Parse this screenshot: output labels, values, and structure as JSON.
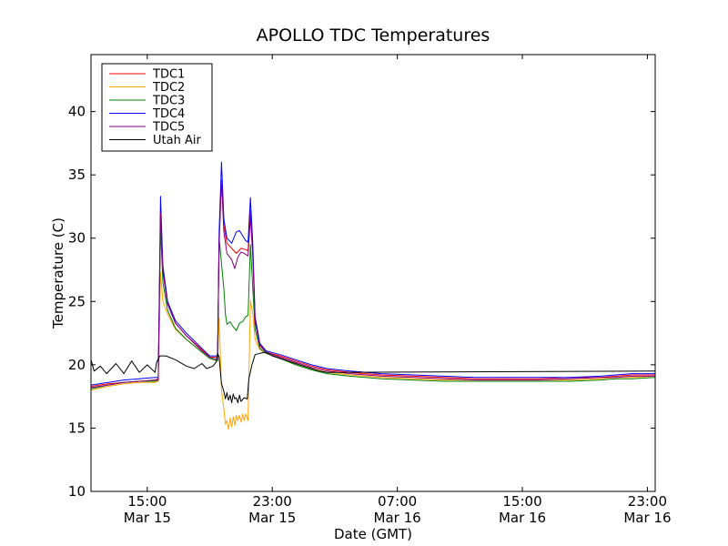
{
  "chart_data": {
    "type": "line",
    "title": "APOLLO TDC Temperatures",
    "xlabel": "Date (GMT)",
    "ylabel": "Temperature (C)",
    "xunit": "hours since Mar 15 00:00 GMT",
    "xlim": [
      11.4,
      47.5
    ],
    "ylim": [
      10,
      44.5
    ],
    "grid": false,
    "legend_position": "top-left",
    "yticks": [
      {
        "value": 10,
        "label": "10"
      },
      {
        "value": 15,
        "label": "15"
      },
      {
        "value": 20,
        "label": "20"
      },
      {
        "value": 25,
        "label": "25"
      },
      {
        "value": 30,
        "label": "30"
      },
      {
        "value": 35,
        "label": "35"
      },
      {
        "value": 40,
        "label": "40"
      }
    ],
    "xticks": [
      {
        "value": 15,
        "time": "15:00",
        "date": "Mar 15"
      },
      {
        "value": 23,
        "time": "23:00",
        "date": "Mar 15"
      },
      {
        "value": 31,
        "time": "07:00",
        "date": "Mar 16"
      },
      {
        "value": 39,
        "time": "15:00",
        "date": "Mar 16"
      },
      {
        "value": 47,
        "time": "23:00",
        "date": "Mar 16"
      }
    ],
    "series": [
      {
        "name": "TDC1",
        "color": "#ff0000",
        "points": [
          [
            11.4,
            18.3
          ],
          [
            12.5,
            18.5
          ],
          [
            13.5,
            18.6
          ],
          [
            14.5,
            18.7
          ],
          [
            15.5,
            18.8
          ],
          [
            15.7,
            18.9
          ],
          [
            15.85,
            31.5
          ],
          [
            16.0,
            27.5
          ],
          [
            16.3,
            24.8
          ],
          [
            16.8,
            23.3
          ],
          [
            17.5,
            22.3
          ],
          [
            18.5,
            21.2
          ],
          [
            19.0,
            20.6
          ],
          [
            19.5,
            20.6
          ],
          [
            19.6,
            30.0
          ],
          [
            19.75,
            34.6
          ],
          [
            19.9,
            31.0
          ],
          [
            20.1,
            29.6
          ],
          [
            20.4,
            29.2
          ],
          [
            20.7,
            28.8
          ],
          [
            21.0,
            29.2
          ],
          [
            21.3,
            29.1
          ],
          [
            21.45,
            29.0
          ],
          [
            21.6,
            32.2
          ],
          [
            21.75,
            29.0
          ],
          [
            21.9,
            23.5
          ],
          [
            22.2,
            21.6
          ],
          [
            22.6,
            21.0
          ],
          [
            23.5,
            20.7
          ],
          [
            24.5,
            20.3
          ],
          [
            25.5,
            19.9
          ],
          [
            26.5,
            19.6
          ],
          [
            28,
            19.4
          ],
          [
            30,
            19.2
          ],
          [
            32,
            19.1
          ],
          [
            34,
            19.0
          ],
          [
            36,
            18.9
          ],
          [
            38,
            18.9
          ],
          [
            40,
            18.9
          ],
          [
            42,
            19.0
          ],
          [
            44,
            19.0
          ],
          [
            45,
            19.1
          ],
          [
            46,
            19.2
          ],
          [
            47.5,
            19.2
          ]
        ]
      },
      {
        "name": "TDC2",
        "color": "#ffa500",
        "points": [
          [
            11.4,
            18.0
          ],
          [
            12.5,
            18.3
          ],
          [
            13.5,
            18.5
          ],
          [
            14.5,
            18.6
          ],
          [
            15.5,
            18.6
          ],
          [
            15.7,
            18.7
          ],
          [
            15.85,
            27.3
          ],
          [
            16.0,
            25.0
          ],
          [
            16.3,
            24.0
          ],
          [
            16.8,
            22.8
          ],
          [
            17.5,
            22.0
          ],
          [
            18.5,
            21.0
          ],
          [
            19.0,
            20.5
          ],
          [
            19.5,
            20.3
          ],
          [
            19.6,
            23.7
          ],
          [
            19.75,
            18.0
          ],
          [
            19.9,
            16.5
          ],
          [
            20.0,
            15.3
          ],
          [
            20.1,
            15.6
          ],
          [
            20.2,
            14.9
          ],
          [
            20.3,
            15.8
          ],
          [
            20.4,
            15.1
          ],
          [
            20.5,
            15.9
          ],
          [
            20.6,
            15.2
          ],
          [
            20.7,
            16.0
          ],
          [
            20.8,
            15.6
          ],
          [
            20.9,
            16.0
          ],
          [
            21.0,
            15.5
          ],
          [
            21.1,
            16.1
          ],
          [
            21.2,
            15.6
          ],
          [
            21.3,
            16.1
          ],
          [
            21.45,
            15.6
          ],
          [
            21.6,
            25.1
          ],
          [
            21.75,
            24.0
          ],
          [
            21.9,
            22.0
          ],
          [
            22.2,
            21.2
          ],
          [
            22.6,
            20.9
          ],
          [
            23.5,
            20.5
          ],
          [
            24.5,
            20.1
          ],
          [
            25.5,
            19.7
          ],
          [
            26.5,
            19.4
          ],
          [
            28,
            19.2
          ],
          [
            30,
            19.0
          ],
          [
            32,
            18.9
          ],
          [
            34,
            18.8
          ],
          [
            36,
            18.8
          ],
          [
            38,
            18.8
          ],
          [
            40,
            18.8
          ],
          [
            42,
            18.8
          ],
          [
            44,
            18.9
          ],
          [
            45,
            19.0
          ],
          [
            46,
            19.0
          ],
          [
            47.5,
            19.1
          ]
        ]
      },
      {
        "name": "TDC3",
        "color": "#008000",
        "points": [
          [
            11.4,
            18.1
          ],
          [
            12.5,
            18.4
          ],
          [
            13.5,
            18.6
          ],
          [
            14.5,
            18.7
          ],
          [
            15.5,
            18.7
          ],
          [
            15.7,
            18.8
          ],
          [
            15.85,
            30.8
          ],
          [
            16.0,
            26.5
          ],
          [
            16.3,
            24.3
          ],
          [
            16.8,
            22.9
          ],
          [
            17.5,
            22.0
          ],
          [
            18.5,
            21.0
          ],
          [
            19.0,
            20.5
          ],
          [
            19.5,
            20.3
          ],
          [
            19.6,
            30.0
          ],
          [
            19.75,
            28.0
          ],
          [
            19.9,
            26.0
          ],
          [
            20.0,
            24.0
          ],
          [
            20.1,
            23.2
          ],
          [
            20.3,
            23.4
          ],
          [
            20.5,
            23.0
          ],
          [
            20.7,
            22.7
          ],
          [
            20.9,
            23.3
          ],
          [
            21.1,
            23.4
          ],
          [
            21.3,
            23.8
          ],
          [
            21.45,
            23.9
          ],
          [
            21.6,
            29.5
          ],
          [
            21.75,
            26.0
          ],
          [
            21.9,
            22.8
          ],
          [
            22.2,
            21.3
          ],
          [
            22.6,
            20.9
          ],
          [
            23.5,
            20.5
          ],
          [
            24.5,
            20.0
          ],
          [
            25.5,
            19.6
          ],
          [
            26.5,
            19.3
          ],
          [
            28,
            19.1
          ],
          [
            30,
            18.9
          ],
          [
            32,
            18.8
          ],
          [
            34,
            18.7
          ],
          [
            36,
            18.7
          ],
          [
            38,
            18.7
          ],
          [
            40,
            18.7
          ],
          [
            42,
            18.7
          ],
          [
            44,
            18.8
          ],
          [
            45,
            18.9
          ],
          [
            46,
            18.9
          ],
          [
            47.5,
            19.0
          ]
        ]
      },
      {
        "name": "TDC4",
        "color": "#0000ff",
        "points": [
          [
            11.4,
            18.4
          ],
          [
            12.5,
            18.6
          ],
          [
            13.5,
            18.8
          ],
          [
            14.5,
            18.9
          ],
          [
            15.5,
            19.0
          ],
          [
            15.7,
            19.0
          ],
          [
            15.85,
            33.3
          ],
          [
            16.0,
            27.8
          ],
          [
            16.3,
            25.0
          ],
          [
            16.8,
            23.5
          ],
          [
            17.5,
            22.5
          ],
          [
            18.5,
            21.3
          ],
          [
            19.0,
            20.7
          ],
          [
            19.5,
            20.7
          ],
          [
            19.6,
            30.5
          ],
          [
            19.75,
            36.0
          ],
          [
            19.9,
            31.5
          ],
          [
            20.1,
            30.0
          ],
          [
            20.4,
            29.6
          ],
          [
            20.7,
            30.5
          ],
          [
            20.9,
            30.6
          ],
          [
            21.1,
            30.2
          ],
          [
            21.3,
            29.8
          ],
          [
            21.45,
            29.7
          ],
          [
            21.6,
            33.2
          ],
          [
            21.75,
            29.5
          ],
          [
            21.9,
            23.8
          ],
          [
            22.2,
            21.7
          ],
          [
            22.6,
            21.1
          ],
          [
            23.5,
            20.8
          ],
          [
            24.5,
            20.4
          ],
          [
            25.5,
            20.0
          ],
          [
            26.5,
            19.7
          ],
          [
            28,
            19.5
          ],
          [
            30,
            19.3
          ],
          [
            32,
            19.2
          ],
          [
            34,
            19.1
          ],
          [
            36,
            19.0
          ],
          [
            38,
            19.0
          ],
          [
            40,
            19.0
          ],
          [
            42,
            19.0
          ],
          [
            44,
            19.1
          ],
          [
            45,
            19.2
          ],
          [
            46,
            19.3
          ],
          [
            47.5,
            19.3
          ]
        ]
      },
      {
        "name": "TDC5",
        "color": "#800080",
        "points": [
          [
            11.4,
            18.2
          ],
          [
            12.5,
            18.4
          ],
          [
            13.5,
            18.6
          ],
          [
            14.5,
            18.7
          ],
          [
            15.5,
            18.8
          ],
          [
            15.7,
            18.8
          ],
          [
            15.85,
            32.0
          ],
          [
            16.0,
            27.3
          ],
          [
            16.3,
            24.8
          ],
          [
            16.8,
            23.3
          ],
          [
            17.5,
            22.3
          ],
          [
            18.5,
            21.1
          ],
          [
            19.0,
            20.6
          ],
          [
            19.5,
            20.4
          ],
          [
            19.6,
            29.5
          ],
          [
            19.75,
            34.6
          ],
          [
            19.9,
            30.5
          ],
          [
            20.1,
            28.8
          ],
          [
            20.4,
            28.3
          ],
          [
            20.6,
            27.6
          ],
          [
            20.8,
            28.5
          ],
          [
            21.0,
            28.9
          ],
          [
            21.2,
            28.8
          ],
          [
            21.45,
            28.6
          ],
          [
            21.6,
            31.7
          ],
          [
            21.75,
            28.5
          ],
          [
            21.9,
            23.4
          ],
          [
            22.2,
            21.5
          ],
          [
            22.6,
            21.0
          ],
          [
            23.5,
            20.6
          ],
          [
            24.5,
            20.2
          ],
          [
            25.5,
            19.8
          ],
          [
            26.5,
            19.5
          ],
          [
            28,
            19.3
          ],
          [
            30,
            19.1
          ],
          [
            32,
            19.0
          ],
          [
            34,
            18.9
          ],
          [
            36,
            18.8
          ],
          [
            38,
            18.8
          ],
          [
            40,
            18.8
          ],
          [
            42,
            18.9
          ],
          [
            44,
            19.0
          ],
          [
            45,
            19.0
          ],
          [
            46,
            19.1
          ],
          [
            47.5,
            19.1
          ]
        ]
      },
      {
        "name": "Utah Air",
        "color": "#000000",
        "points": [
          [
            11.4,
            20.4
          ],
          [
            11.6,
            19.5
          ],
          [
            12.0,
            19.9
          ],
          [
            12.4,
            19.3
          ],
          [
            13.0,
            20.1
          ],
          [
            13.5,
            19.3
          ],
          [
            14.0,
            20.3
          ],
          [
            14.5,
            19.4
          ],
          [
            15.0,
            20.0
          ],
          [
            15.5,
            19.4
          ],
          [
            15.6,
            20.2
          ],
          [
            15.8,
            20.7
          ],
          [
            16.2,
            20.7
          ],
          [
            16.8,
            20.4
          ],
          [
            17.5,
            19.9
          ],
          [
            18.0,
            19.7
          ],
          [
            18.5,
            20.1
          ],
          [
            18.8,
            19.7
          ],
          [
            19.2,
            19.9
          ],
          [
            19.4,
            20.2
          ],
          [
            19.5,
            20.9
          ],
          [
            19.6,
            20.6
          ],
          [
            19.75,
            18.5
          ],
          [
            19.9,
            17.9
          ],
          [
            20.0,
            17.3
          ],
          [
            20.1,
            17.8
          ],
          [
            20.2,
            17.2
          ],
          [
            20.3,
            17.6
          ],
          [
            20.4,
            17.0
          ],
          [
            20.5,
            17.7
          ],
          [
            20.6,
            17.3
          ],
          [
            20.7,
            17.4
          ],
          [
            20.8,
            17.0
          ],
          [
            20.9,
            17.6
          ],
          [
            21.0,
            17.1
          ],
          [
            21.2,
            17.4
          ],
          [
            21.4,
            17.3
          ],
          [
            21.5,
            18.9
          ],
          [
            21.7,
            20.0
          ],
          [
            21.9,
            20.8
          ],
          [
            22.2,
            20.9
          ],
          [
            22.6,
            21.0
          ],
          [
            23.0,
            20.7
          ],
          [
            23.5,
            20.5
          ],
          [
            24.0,
            20.3
          ],
          [
            24.5,
            20.1
          ],
          [
            25.0,
            19.9
          ],
          [
            25.5,
            19.7
          ],
          [
            26.0,
            19.5
          ],
          [
            26.5,
            19.4
          ],
          [
            47.5,
            19.5
          ]
        ]
      }
    ]
  }
}
